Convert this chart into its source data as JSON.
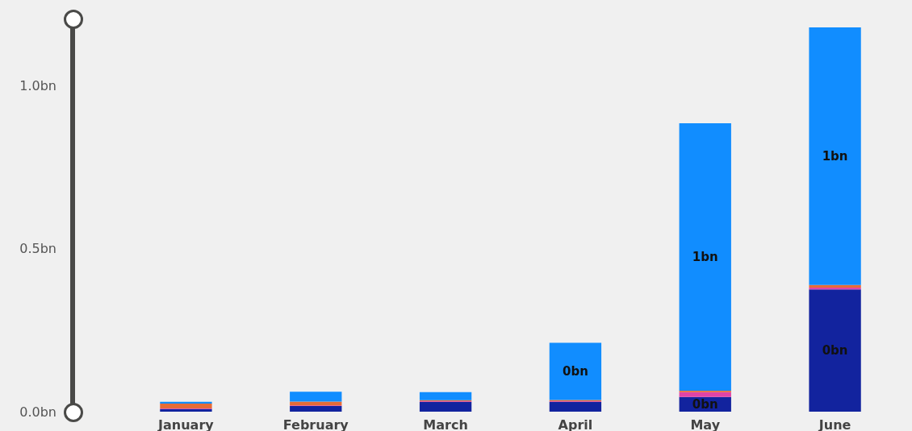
{
  "chart_data": {
    "type": "bar",
    "stacked": true,
    "categories": [
      "January",
      "February",
      "March",
      "April",
      "May",
      "June"
    ],
    "series": [
      {
        "color": "#12239e",
        "values": [
          0.008,
          0.017,
          0.03,
          0.03,
          0.045,
          0.375
        ],
        "value_labels": [
          null,
          null,
          null,
          null,
          "0bn",
          "0bn"
        ]
      },
      {
        "color": "#e044a7",
        "values": [
          0.002,
          0.002,
          0.002,
          0.002,
          0.015,
          0.005
        ]
      },
      {
        "color": "#e66c37",
        "values": [
          0.015,
          0.012,
          0.003,
          0.004,
          0.004,
          0.008
        ]
      },
      {
        "color": "#118dff",
        "values": [
          0.005,
          0.03,
          0.025,
          0.175,
          0.82,
          0.79
        ],
        "value_labels": [
          null,
          null,
          null,
          "0bn",
          "1bn",
          "1bn"
        ]
      }
    ],
    "ylim": [
      0,
      1.2
    ],
    "yticks": [
      {
        "value": 0,
        "label": "0.0bn"
      },
      {
        "value": 0.5,
        "label": "0.5bn"
      },
      {
        "value": 1,
        "label": "1.0bn"
      }
    ],
    "grid": false
  }
}
